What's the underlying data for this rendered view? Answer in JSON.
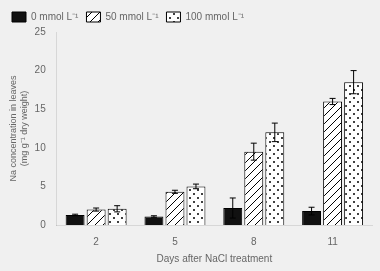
{
  "chart_data": {
    "type": "bar",
    "categories": [
      "2",
      "5",
      "8",
      "11"
    ],
    "series": [
      {
        "name": "0 mmol L⁻¹",
        "color": "#111111",
        "values": [
          1.3,
          1.1,
          2.2,
          1.8
        ],
        "errors": [
          0.1,
          0.1,
          1.3,
          0.5
        ]
      },
      {
        "name": "50 mmol L⁻¹",
        "color": "white",
        "values": [
          2.0,
          4.3,
          9.5,
          16.0
        ],
        "errors": [
          0.2,
          0.2,
          1.1,
          0.4
        ]
      },
      {
        "name": "100 mmol L⁻¹",
        "color": "white",
        "values": [
          2.1,
          5.0,
          12.0,
          18.5
        ],
        "errors": [
          0.4,
          0.3,
          1.2,
          1.5
        ]
      }
    ],
    "xlabel": "Days after NaCl treatment",
    "ylabel": "Na concentration in leaves\n(mg g⁻¹ dry weight)",
    "ylim": [
      0,
      25
    ],
    "yticks": [
      0,
      5,
      10,
      15,
      20,
      25
    ],
    "grid": false,
    "legend": "upper left"
  }
}
